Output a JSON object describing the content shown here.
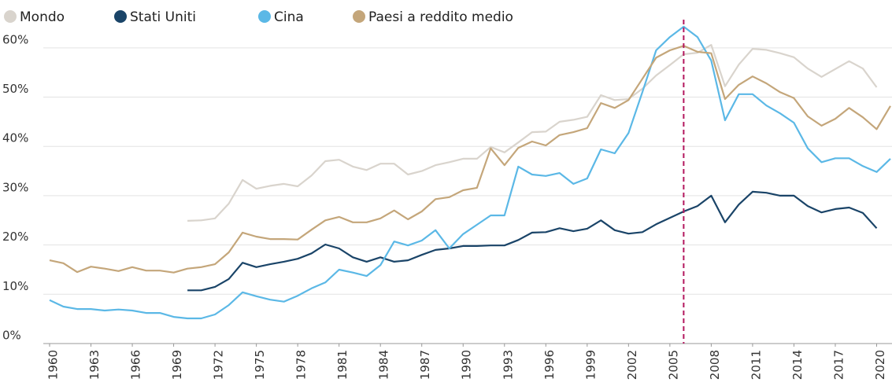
{
  "chart_data": {
    "type": "line",
    "x": [
      1960,
      1961,
      1962,
      1963,
      1964,
      1965,
      1966,
      1967,
      1968,
      1969,
      1970,
      1971,
      1972,
      1973,
      1974,
      1975,
      1976,
      1977,
      1978,
      1979,
      1980,
      1981,
      1982,
      1983,
      1984,
      1985,
      1986,
      1987,
      1988,
      1989,
      1990,
      1991,
      1992,
      1993,
      1994,
      1995,
      1996,
      1997,
      1998,
      1999,
      2000,
      2001,
      2002,
      2003,
      2004,
      2005,
      2006,
      2007,
      2008,
      2009,
      2010,
      2011,
      2012,
      2013,
      2014,
      2015,
      2016,
      2017,
      2018,
      2019,
      2020,
      2021
    ],
    "series": [
      {
        "name": "Mondo",
        "color": "#d9d4cd",
        "values": [
          null,
          null,
          null,
          null,
          null,
          null,
          null,
          null,
          null,
          null,
          24.9,
          25,
          25.4,
          28.4,
          33.2,
          31.4,
          32,
          32.4,
          31.9,
          34.1,
          37,
          37.3,
          35.9,
          35.2,
          36.5,
          36.5,
          34.3,
          35,
          36.2,
          36.8,
          37.5,
          37.5,
          39.9,
          38.8,
          40.8,
          42.9,
          43,
          45,
          45.4,
          46,
          50.4,
          49.4,
          49.6,
          51.7,
          54.4,
          56.5,
          58.7,
          59,
          60.6,
          52.2,
          56.6,
          59.8,
          59.6,
          58.9,
          58.1,
          55.8,
          54.1,
          55.7,
          57.3,
          55.8,
          52,
          null
        ]
      },
      {
        "name": "Stati Uniti",
        "color": "#1a4468",
        "values": [
          null,
          null,
          null,
          null,
          null,
          null,
          null,
          null,
          null,
          null,
          10.8,
          10.8,
          11.5,
          13.1,
          16.4,
          15.5,
          16.1,
          16.6,
          17.2,
          18.3,
          20.1,
          19.3,
          17.5,
          16.6,
          17.5,
          16.6,
          16.9,
          18,
          19,
          19.3,
          19.8,
          19.8,
          19.9,
          19.9,
          21,
          22.5,
          22.6,
          23.4,
          22.8,
          23.3,
          25,
          23,
          22.3,
          22.6,
          24.2,
          25.5,
          26.8,
          27.9,
          30,
          24.6,
          28.2,
          30.8,
          30.6,
          30,
          30,
          27.9,
          26.6,
          27.3,
          27.6,
          26.5,
          23.4,
          null
        ]
      },
      {
        "name": "Cina",
        "color": "#5bb8e6",
        "values": [
          8.8,
          7.5,
          7,
          7,
          6.7,
          6.9,
          6.7,
          6.2,
          6.2,
          5.4,
          5.1,
          5.1,
          5.9,
          7.8,
          10.4,
          9.6,
          8.9,
          8.5,
          9.7,
          11.2,
          12.4,
          15,
          14.4,
          13.7,
          15.9,
          20.7,
          19.9,
          20.9,
          23,
          19.3,
          22.2,
          24.1,
          26,
          26,
          35.9,
          34.3,
          34,
          34.6,
          32.4,
          33.5,
          39.4,
          38.6,
          42.7,
          51,
          59.5,
          62.2,
          64.3,
          62.2,
          57.4,
          45.3,
          50.6,
          50.6,
          48.3,
          46.7,
          44.8,
          39.6,
          36.8,
          37.6,
          37.6,
          36,
          34.8,
          37.5
        ]
      },
      {
        "name": "Paesi a reddito medio",
        "color": "#c4a67a",
        "values": [
          16.9,
          16.3,
          14.5,
          15.6,
          15.2,
          14.7,
          15.5,
          14.8,
          14.8,
          14.4,
          15.2,
          15.5,
          16.1,
          18.5,
          22.5,
          21.7,
          21.2,
          21.2,
          21.1,
          23.1,
          25,
          25.7,
          24.6,
          24.6,
          25.4,
          27,
          25.2,
          26.8,
          29.3,
          29.7,
          31.1,
          31.6,
          39.6,
          36.2,
          39.7,
          41,
          40.2,
          42.3,
          42.9,
          43.7,
          48.8,
          47.8,
          49.4,
          53.7,
          58,
          59.5,
          60.4,
          59.2,
          58.9,
          49.6,
          52.5,
          54.2,
          52.8,
          51,
          49.8,
          46.1,
          44.2,
          45.6,
          47.8,
          45.9,
          43.5,
          48.2
        ]
      }
    ],
    "xlim": [
      1960,
      2021
    ],
    "xticks": [
      1960,
      1963,
      1966,
      1969,
      1972,
      1975,
      1978,
      1981,
      1984,
      1987,
      1990,
      1993,
      1996,
      1999,
      2002,
      2005,
      2008,
      2011,
      2014,
      2017,
      2020
    ],
    "ylim": [
      0,
      65
    ],
    "yticks": [
      {
        "value": 0,
        "label": "0%"
      },
      {
        "value": 10,
        "label": "10%"
      },
      {
        "value": 20,
        "label": "20%"
      },
      {
        "value": 30,
        "label": "30%"
      },
      {
        "value": 40,
        "label": "40%"
      },
      {
        "value": 50,
        "label": "50%"
      },
      {
        "value": 60,
        "label": "60%"
      }
    ],
    "grid": true,
    "vline": {
      "x": 2006,
      "color": "#b3175d"
    }
  }
}
